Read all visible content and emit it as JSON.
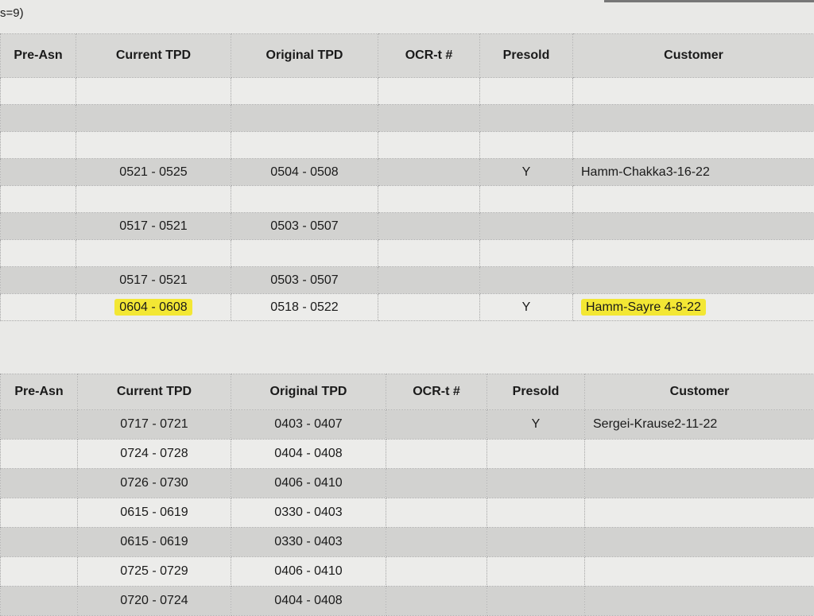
{
  "caption": "s=9)",
  "columns": [
    "Pre-Asn",
    "Current TPD",
    "Original TPD",
    "OCR-t #",
    "Presold",
    "Customer"
  ],
  "table1": {
    "rows": [
      {
        "pre": "",
        "cur": "",
        "orig": "",
        "ocr": "",
        "presold": "",
        "customer": ""
      },
      {
        "pre": "",
        "cur": "",
        "orig": "",
        "ocr": "",
        "presold": "",
        "customer": ""
      },
      {
        "pre": "",
        "cur": "",
        "orig": "",
        "ocr": "",
        "presold": "",
        "customer": ""
      },
      {
        "pre": "",
        "cur": "0521 - 0525",
        "orig": "0504 - 0508",
        "ocr": "",
        "presold": "Y",
        "customer": "Hamm-Chakka3-16-22"
      },
      {
        "pre": "",
        "cur": "",
        "orig": "",
        "ocr": "",
        "presold": "",
        "customer": ""
      },
      {
        "pre": "",
        "cur": "0517 - 0521",
        "orig": "0503 - 0507",
        "ocr": "",
        "presold": "",
        "customer": ""
      },
      {
        "pre": "",
        "cur": "",
        "orig": "",
        "ocr": "",
        "presold": "",
        "customer": ""
      },
      {
        "pre": "",
        "cur": "0517 - 0521",
        "orig": "0503 - 0507",
        "ocr": "",
        "presold": "",
        "customer": ""
      },
      {
        "pre": "",
        "cur": "0604 - 0608",
        "orig": "0518 - 0522",
        "ocr": "",
        "presold": "Y",
        "customer": "Hamm-Sayre 4-8-22",
        "highlight": true
      }
    ]
  },
  "table2": {
    "rows": [
      {
        "pre": "",
        "cur": "0717 - 0721",
        "orig": "0403 - 0407",
        "ocr": "",
        "presold": "Y",
        "customer": "Sergei-Krause2-11-22"
      },
      {
        "pre": "",
        "cur": "0724 - 0728",
        "orig": "0404 - 0408",
        "ocr": "",
        "presold": "",
        "customer": ""
      },
      {
        "pre": "",
        "cur": "0726 - 0730",
        "orig": "0406 - 0410",
        "ocr": "",
        "presold": "",
        "customer": ""
      },
      {
        "pre": "",
        "cur": "0615 - 0619",
        "orig": "0330 - 0403",
        "ocr": "",
        "presold": "",
        "customer": ""
      },
      {
        "pre": "",
        "cur": "0615 - 0619",
        "orig": "0330 - 0403",
        "ocr": "",
        "presold": "",
        "customer": ""
      },
      {
        "pre": "",
        "cur": "0725 - 0729",
        "orig": "0406 - 0410",
        "ocr": "",
        "presold": "",
        "customer": ""
      },
      {
        "pre": "",
        "cur": "0720 - 0724",
        "orig": "0404 - 0408",
        "ocr": "",
        "presold": "",
        "customer": ""
      }
    ]
  },
  "highlight_color": "#f3e734"
}
